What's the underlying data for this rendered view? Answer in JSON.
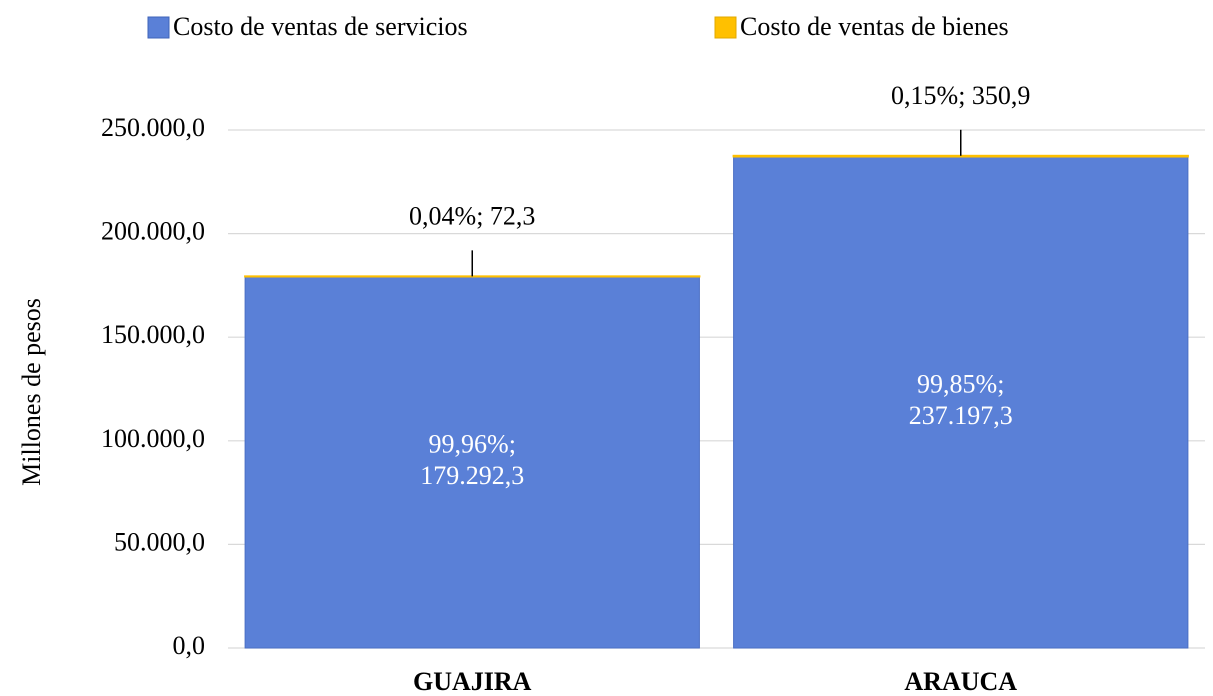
{
  "chart_data": {
    "type": "stacked_bar",
    "categories": [
      "GUAJIRA",
      "ARAUCA"
    ],
    "y_label": "Millones  de pesos",
    "series": [
      {
        "name": "Costo de ventas de servicios",
        "color": "#5a80d7",
        "values": [
          179292.3,
          237197.3
        ],
        "value_labels": [
          "99,96%; 179.292,3",
          "99,85%; 237.197,3"
        ]
      },
      {
        "name": "Costo de ventas de bienes",
        "color": "#ffc000",
        "values": [
          72.3,
          350.9
        ],
        "value_labels": [
          "0,04%; 72,3",
          "0,15%; 350,9"
        ]
      }
    ],
    "ylim": [
      0,
      250000
    ],
    "yticks": [
      {
        "value": 0,
        "label": "0,0"
      },
      {
        "value": 50000,
        "label": "50.000,0"
      },
      {
        "value": 100000,
        "label": "100.000,0"
      },
      {
        "value": 150000,
        "label": "150.000,0"
      },
      {
        "value": 200000,
        "label": "200.000,0"
      },
      {
        "value": 250000,
        "label": "250.000,0"
      }
    ],
    "grid": true,
    "legend": "top"
  }
}
